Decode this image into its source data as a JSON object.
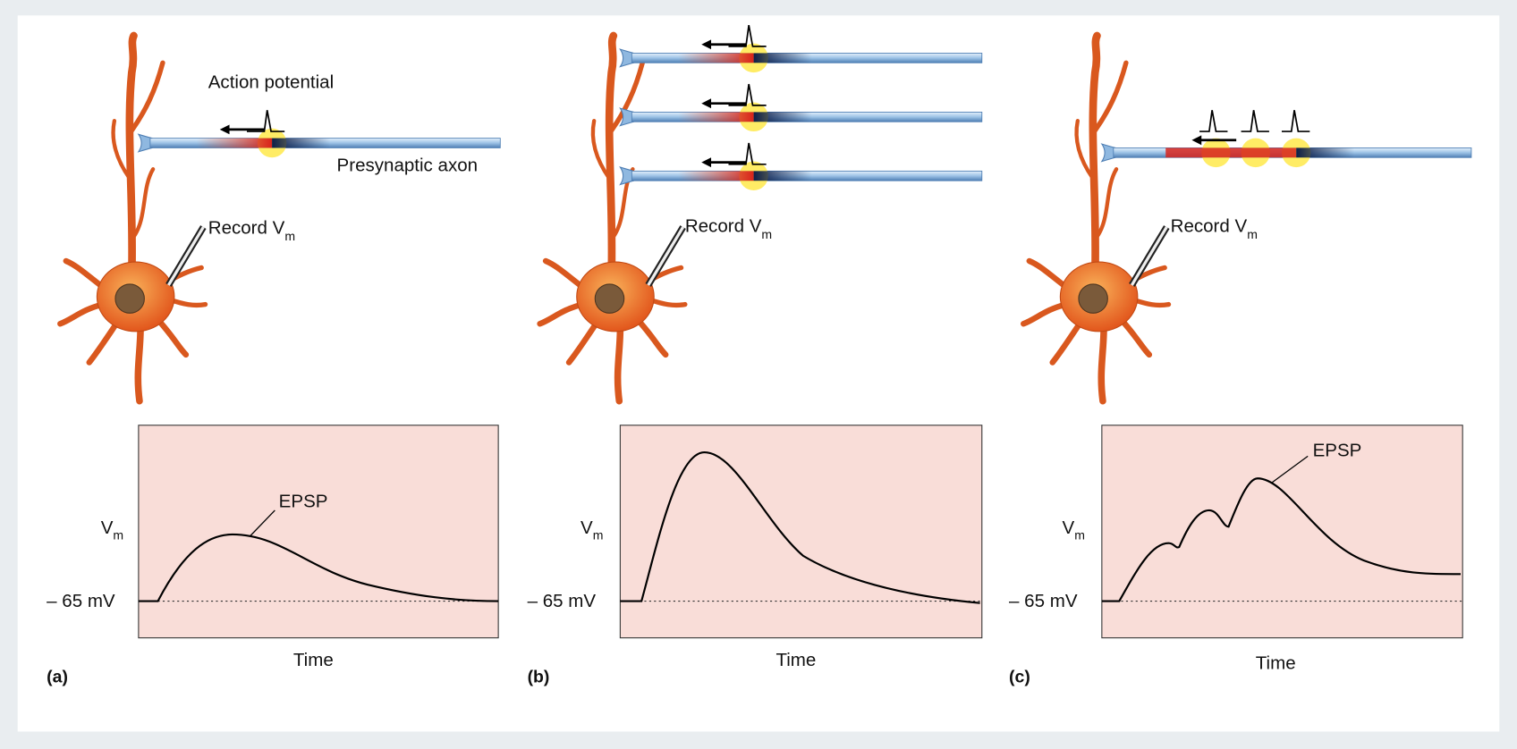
{
  "panels": [
    {
      "label": "(a)",
      "action_potential": "Action potential",
      "axon": "Presynaptic axon",
      "record": {
        "text": "Record V",
        "subscript": "m"
      },
      "y_axis": {
        "text": "V",
        "subscript": "m"
      },
      "baseline": "– 65 mV",
      "epsp": "EPSP",
      "x_axis": "Time"
    },
    {
      "label": "(b)",
      "record": {
        "text": "Record V",
        "subscript": "m"
      },
      "y_axis": {
        "text": "V",
        "subscript": "m"
      },
      "baseline": "– 65 mV",
      "x_axis": "Time"
    },
    {
      "label": "(c)",
      "record": {
        "text": "Record V",
        "subscript": "m"
      },
      "y_axis": {
        "text": "V",
        "subscript": "m"
      },
      "baseline": "– 65 mV",
      "epsp": "EPSP",
      "x_axis": "Time"
    }
  ]
}
